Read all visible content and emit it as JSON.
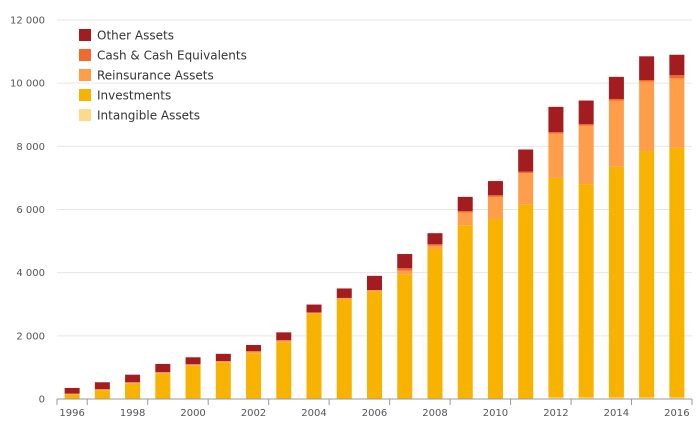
{
  "chart_data": {
    "type": "bar",
    "stacked": true,
    "title": "",
    "xlabel": "",
    "ylabel": "",
    "ylim": [
      0,
      12000
    ],
    "yticks": [
      0,
      2000,
      4000,
      6000,
      8000,
      10000,
      12000
    ],
    "ytick_labels": [
      "0",
      "2 000",
      "4 000",
      "6 000",
      "8 000",
      "10 000",
      "12 000"
    ],
    "grid": true,
    "legend_position": "top-left",
    "categories": [
      "1996",
      "1997",
      "1998",
      "1999",
      "2000",
      "2001",
      "2002",
      "2003",
      "2004",
      "2005",
      "2006",
      "2007",
      "2008",
      "2009",
      "2010",
      "2011",
      "2012",
      "2013",
      "2014",
      "2015",
      "2016"
    ],
    "xtick_labels": [
      "1996",
      "",
      "1998",
      "",
      "2000",
      "",
      "2002",
      "",
      "2004",
      "",
      "2006",
      "",
      "2008",
      "",
      "2010",
      "",
      "2012",
      "",
      "2014",
      "",
      "2016"
    ],
    "series": [
      {
        "name": "Intangible Assets",
        "color": "#FDD98A",
        "values": [
          0,
          0,
          0,
          0,
          0,
          0,
          0,
          0,
          0,
          0,
          0,
          0,
          0,
          0,
          0,
          0,
          50,
          50,
          50,
          50,
          50
        ]
      },
      {
        "name": "Investments",
        "color": "#F8B200",
        "values": [
          150,
          280,
          480,
          800,
          1050,
          1150,
          1450,
          1800,
          2700,
          3150,
          3400,
          3950,
          4750,
          5500,
          5700,
          6150,
          6950,
          6750,
          7300,
          7800,
          7900
        ]
      },
      {
        "name": "Reinsurance Assets",
        "color": "#FF9E4A",
        "values": [
          20,
          30,
          50,
          50,
          50,
          50,
          60,
          60,
          40,
          50,
          50,
          120,
          100,
          400,
          700,
          1000,
          1400,
          1850,
          2100,
          2200,
          2200
        ]
      },
      {
        "name": "Cash & Cash Equivalents",
        "color": "#F26A2E",
        "values": [
          0,
          0,
          0,
          0,
          0,
          0,
          0,
          0,
          0,
          0,
          0,
          70,
          50,
          50,
          50,
          50,
          50,
          50,
          50,
          50,
          100
        ]
      },
      {
        "name": "Other Assets",
        "color": "#A31C20",
        "values": [
          180,
          220,
          240,
          260,
          220,
          230,
          200,
          250,
          250,
          300,
          450,
          450,
          350,
          450,
          450,
          700,
          800,
          750,
          700,
          750,
          650
        ]
      }
    ]
  }
}
